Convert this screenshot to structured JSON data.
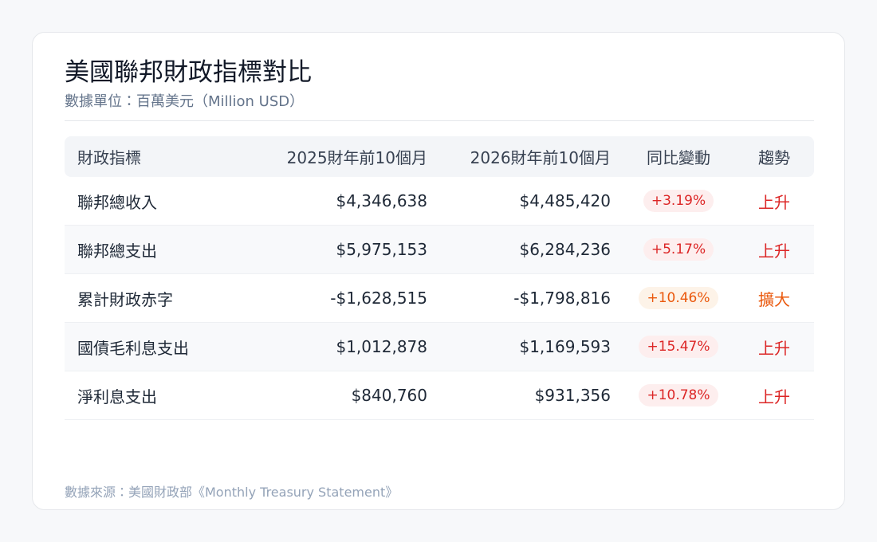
{
  "header": {
    "title": "美國聯邦財政指標對比",
    "subtitle": "數據單位：百萬美元（Million USD）"
  },
  "table": {
    "columns": [
      "財政指標",
      "2025財年前10個月",
      "2026財年前10個月",
      "同比變動",
      "趨勢"
    ],
    "rows": [
      [
        "聯邦總收入",
        "$4,346,638",
        "$4,485,420",
        "+3.19%",
        "上升"
      ],
      [
        "聯邦總支出",
        "$5,975,153",
        "$6,284,236",
        "+5.17%",
        "上升"
      ],
      [
        "累計財政赤字",
        "-$1,628,515",
        "-$1,798,816",
        "+10.46%",
        "擴大"
      ],
      [
        "國債毛利息支出",
        "$1,012,878",
        "$1,169,593",
        "+15.47%",
        "上升"
      ],
      [
        "淨利息支出",
        "$840,760",
        "$931,356",
        "+10.78%",
        "上升"
      ]
    ]
  },
  "footer": {
    "source": "數據來源：美國財政部《Monthly Treasury Statement》"
  }
}
